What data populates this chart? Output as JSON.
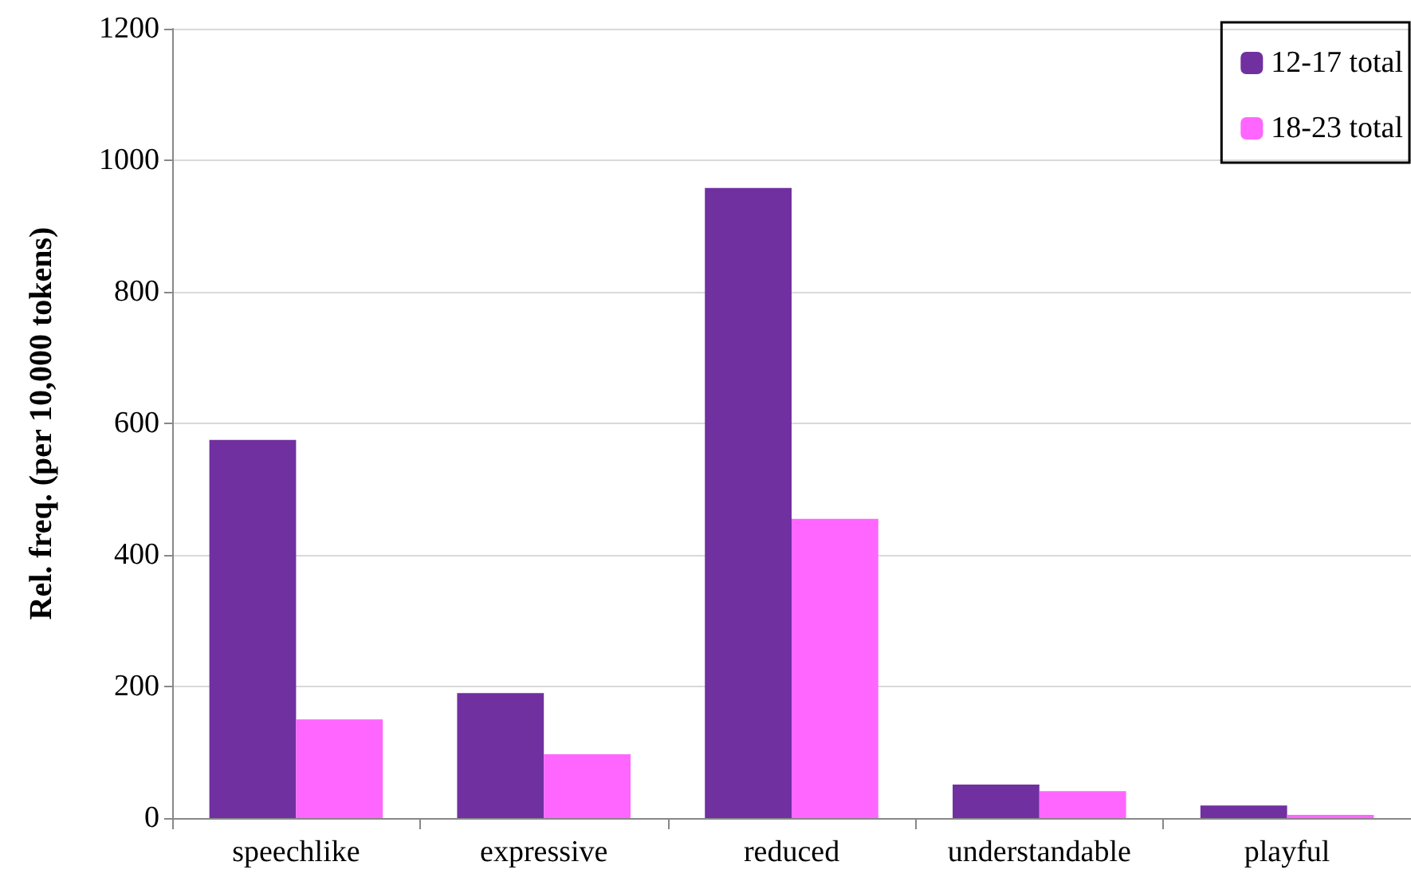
{
  "chart_data": {
    "type": "bar",
    "ylabel": "Rel. freq. (per 10,000 tokens)",
    "categories": [
      "speechlike",
      "expressive",
      "reduced",
      "understandable",
      "playful"
    ],
    "series": [
      {
        "name": "12-17 total",
        "color": "#7030a0",
        "values": [
          575,
          190,
          958,
          51,
          19
        ]
      },
      {
        "name": "18-23 total",
        "color": "#ff66ff",
        "values": [
          150,
          97,
          455,
          41,
          5
        ]
      }
    ],
    "ylim": [
      0,
      1200
    ],
    "yticks": [
      0,
      200,
      400,
      600,
      800,
      1000,
      1200
    ],
    "grid": "y",
    "legend": "top right"
  }
}
